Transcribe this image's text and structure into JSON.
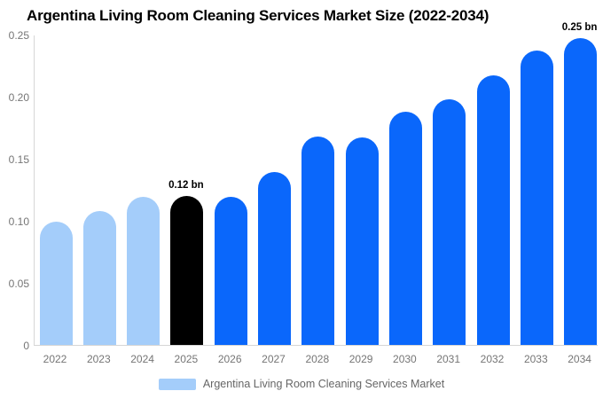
{
  "title": "Argentina Living Room Cleaning Services Market Size (2022-2034)",
  "colors": {
    "background": "#ffffff",
    "historical_bar": "#a4cdfa",
    "base_year_bar": "#000000",
    "forecast_bar": "#0a67fb",
    "axis_line": "#d6d6d6",
    "axis_text": "#757575",
    "legend_text": "#666666",
    "title_text": "#000000",
    "annotation_text": "#000000"
  },
  "chart_data": {
    "type": "bar",
    "title": "Argentina Living Room Cleaning Services Market Size (2022-2034)",
    "categories": [
      "2022",
      "2023",
      "2024",
      "2025",
      "2026",
      "2027",
      "2028",
      "2029",
      "2030",
      "2031",
      "2032",
      "2033",
      "2034"
    ],
    "values": [
      0.099,
      0.108,
      0.119,
      0.12,
      0.119,
      0.139,
      0.168,
      0.167,
      0.188,
      0.198,
      0.217,
      0.237,
      0.247
    ],
    "unit": "bn",
    "xlabel": "",
    "ylabel": "",
    "ylim": [
      0,
      0.25
    ],
    "yticks": [
      "0",
      "0.05",
      "0.10",
      "0.15",
      "0.20",
      "0.25"
    ],
    "grid": false,
    "bar_color_roles": [
      "historical",
      "historical",
      "historical",
      "base_year",
      "forecast",
      "forecast",
      "forecast",
      "forecast",
      "forecast",
      "forecast",
      "forecast",
      "forecast",
      "forecast"
    ],
    "role_colors": {
      "historical": "#a4cdfa",
      "base_year": "#000000",
      "forecast": "#0a67fb"
    },
    "annotations": [
      {
        "category": "2025",
        "text": "0.12 bn"
      },
      {
        "category": "2034",
        "text": "0.25 bn"
      }
    ],
    "legend": {
      "position": "bottom",
      "entries": [
        {
          "label": "Argentina Living Room Cleaning Services Market",
          "swatch_color": "#a4cdfa"
        }
      ]
    }
  }
}
